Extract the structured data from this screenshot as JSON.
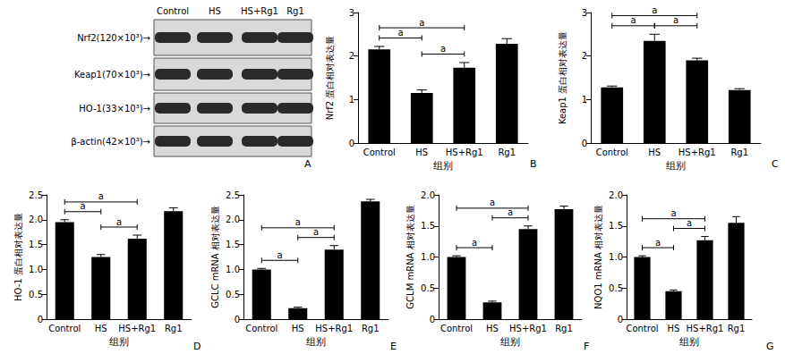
{
  "blot": {
    "panel_label": "A",
    "lanes": [
      "Control",
      "HS",
      "HS+Rg1",
      "Rg1"
    ],
    "rows": [
      "Nrf2(120×10³)→",
      "Keap1(70×10³)→",
      "HO-1(33×10³)→",
      "β-actin(42×10³)→"
    ]
  },
  "chart_data": [
    {
      "type": "bar",
      "panel_label": "B",
      "categories": [
        "Control",
        "HS",
        "HS+Rg1",
        "Rg1"
      ],
      "values": [
        2.15,
        1.15,
        1.73,
        2.28
      ],
      "errors": [
        0.07,
        0.07,
        0.12,
        0.12
      ],
      "color": "#000000",
      "x_label": "组别",
      "y_label": "Nrf2 蛋白相对表达量",
      "ylim": [
        0,
        3
      ],
      "yticks": [
        0,
        1,
        2,
        3
      ],
      "annotations": [
        {
          "text": "a",
          "from": "Control",
          "to": "HS"
        },
        {
          "text": "a",
          "from": "HS",
          "to": "HS+Rg1"
        },
        {
          "text": "a",
          "from": "Control",
          "to": "HS+Rg1"
        }
      ]
    },
    {
      "type": "bar",
      "panel_label": "C",
      "categories": [
        "Control",
        "HS",
        "HS+Rg1",
        "Rg1"
      ],
      "values": [
        1.28,
        2.35,
        1.9,
        1.22
      ],
      "errors": [
        0.03,
        0.15,
        0.05,
        0.03
      ],
      "color": "#000000",
      "x_label": "组别",
      "y_label": "Keap1 蛋白相对表达量",
      "ylim": [
        0,
        3
      ],
      "yticks": [
        0,
        1,
        2,
        3
      ],
      "annotations": [
        {
          "text": "a",
          "from": "Control",
          "to": "HS"
        },
        {
          "text": "a",
          "from": "HS",
          "to": "HS+Rg1"
        },
        {
          "text": "a",
          "from": "Control",
          "to": "HS+Rg1"
        }
      ]
    },
    {
      "type": "bar",
      "panel_label": "D",
      "categories": [
        "Control",
        "HS",
        "HS+Rg1",
        "Rg1"
      ],
      "values": [
        1.95,
        1.25,
        1.62,
        2.17
      ],
      "errors": [
        0.05,
        0.05,
        0.07,
        0.07
      ],
      "color": "#000000",
      "x_label": "组别",
      "y_label": "HO-1 蛋白相对表达量",
      "ylim": [
        0,
        2.5
      ],
      "yticks": [
        0,
        0.5,
        {
          "value": 1,
          "label": "1.0"
        },
        1.5,
        {
          "value": 2,
          "label": "2.0"
        },
        2.5
      ],
      "annotations": [
        {
          "text": "a",
          "from": "Control",
          "to": "HS"
        },
        {
          "text": "a",
          "from": "HS",
          "to": "HS+Rg1"
        },
        {
          "text": "a",
          "from": "Control",
          "to": "HS+Rg1"
        }
      ]
    },
    {
      "type": "bar",
      "panel_label": "E",
      "categories": [
        "Control",
        "HS",
        "HS+Rg1",
        "Rg1"
      ],
      "values": [
        1.0,
        0.22,
        1.4,
        2.37
      ],
      "errors": [
        0.02,
        0.02,
        0.08,
        0.04
      ],
      "color": "#000000",
      "x_label": "组别",
      "y_label": "GCLC mRNA 相对表达量",
      "ylim": [
        0,
        2.5
      ],
      "yticks": [
        0,
        0.5,
        {
          "value": 1,
          "label": "1.0"
        },
        1.5,
        {
          "value": 2,
          "label": "2.0"
        },
        2.5
      ],
      "annotations": [
        {
          "text": "a",
          "from": "Control",
          "to": "HS"
        },
        {
          "text": "a",
          "from": "HS",
          "to": "HS+Rg1"
        },
        {
          "text": "a",
          "from": "Control",
          "to": "HS+Rg1"
        }
      ]
    },
    {
      "type": "bar",
      "panel_label": "F",
      "categories": [
        "Control",
        "HS",
        "HS+Rg1",
        "Rg1"
      ],
      "values": [
        1.0,
        0.27,
        1.45,
        1.77
      ],
      "errors": [
        0.02,
        0.02,
        0.05,
        0.05
      ],
      "color": "#000000",
      "x_label": "组别",
      "y_label": "GCLM mRNA 相对表达量",
      "ylim": [
        0,
        2
      ],
      "yticks": [
        0,
        0.5,
        {
          "value": 1,
          "label": "1.0"
        },
        1.5,
        {
          "value": 2,
          "label": "2.0"
        }
      ],
      "annotations": [
        {
          "text": "a",
          "from": "Control",
          "to": "HS"
        },
        {
          "text": "a",
          "from": "HS",
          "to": "HS+Rg1"
        },
        {
          "text": "a",
          "from": "Control",
          "to": "HS+Rg1"
        }
      ]
    },
    {
      "type": "bar",
      "panel_label": "G",
      "categories": [
        "Control",
        "HS",
        "HS+Rg1",
        "Rg1"
      ],
      "values": [
        1.0,
        0.45,
        1.27,
        1.55
      ],
      "errors": [
        0.02,
        0.02,
        0.06,
        0.1
      ],
      "color": "#000000",
      "x_label": "组别",
      "y_label": "NQO1 mRNA 相对表达量",
      "ylim": [
        0,
        2
      ],
      "yticks": [
        0,
        0.5,
        {
          "value": 1,
          "label": "1.0"
        },
        1.5,
        {
          "value": 2,
          "label": "2.0"
        }
      ],
      "annotations": [
        {
          "text": "a",
          "from": "Control",
          "to": "HS"
        },
        {
          "text": "a",
          "from": "HS",
          "to": "HS+Rg1"
        },
        {
          "text": "a",
          "from": "Control",
          "to": "HS+Rg1"
        }
      ]
    }
  ]
}
